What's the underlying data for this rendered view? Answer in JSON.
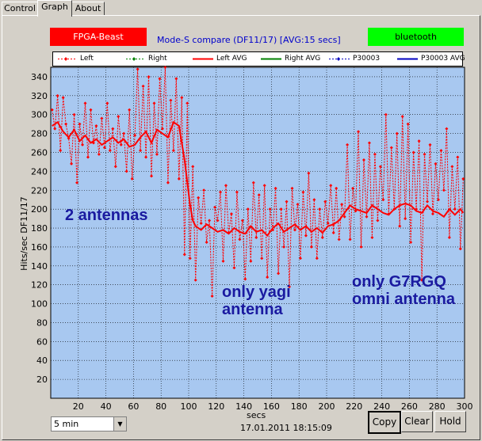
{
  "tabs": [
    "Control",
    "Graph",
    "About"
  ],
  "active_tab": 1,
  "badges": {
    "fpga": {
      "label": "FPGA-Beast",
      "color": "#ff0000"
    },
    "bt": {
      "label": "bluetooth",
      "color": "#00ff00"
    }
  },
  "chart_title": "Mode-S compare (DF11/17) [AVG:15 secs]",
  "legend": [
    {
      "label": "Left",
      "color": "#ff0000",
      "style": "dotted"
    },
    {
      "label": "Right",
      "color": "#008000",
      "style": "dotted"
    },
    {
      "label": "Left AVG",
      "color": "#ff0000",
      "style": "solid"
    },
    {
      "label": "Right AVG",
      "color": "#008000",
      "style": "solid"
    },
    {
      "label": "P30003",
      "color": "#0000c0",
      "style": "dotted"
    },
    {
      "label": "P30003 AVG",
      "color": "#0000c0",
      "style": "solid"
    }
  ],
  "chart_data": {
    "type": "line",
    "title": "Mode-S compare (DF11/17) [AVG:15 secs]",
    "xlabel": "secs",
    "ylabel": "Hits/sec DF11/17",
    "xlim": [
      0,
      300
    ],
    "ylim": [
      0,
      350
    ],
    "xticks": [
      20,
      40,
      60,
      80,
      100,
      120,
      140,
      160,
      180,
      200,
      220,
      240,
      260,
      280,
      300
    ],
    "yticks": [
      0,
      20,
      40,
      60,
      80,
      100,
      120,
      140,
      160,
      180,
      200,
      220,
      240,
      260,
      280,
      300,
      320,
      340
    ],
    "grid": true,
    "background": "#a8c8f0",
    "series": [
      {
        "name": "Left",
        "style": "dotted-markers",
        "color": "#ff0000",
        "x": [
          1,
          3,
          5,
          7,
          9,
          11,
          13,
          15,
          17,
          19,
          21,
          23,
          25,
          27,
          29,
          31,
          33,
          35,
          37,
          39,
          41,
          43,
          45,
          47,
          49,
          51,
          53,
          55,
          57,
          59,
          61,
          63,
          65,
          67,
          69,
          71,
          73,
          75,
          77,
          79,
          81,
          83,
          85,
          87,
          89,
          91,
          93,
          95,
          97,
          99,
          101,
          103,
          105,
          107,
          109,
          111,
          113,
          115,
          117,
          119,
          121,
          123,
          125,
          127,
          129,
          131,
          133,
          135,
          137,
          139,
          141,
          143,
          145,
          147,
          149,
          151,
          153,
          155,
          157,
          159,
          161,
          163,
          165,
          167,
          169,
          171,
          173,
          175,
          177,
          179,
          181,
          183,
          185,
          187,
          189,
          191,
          193,
          195,
          197,
          199,
          201,
          203,
          205,
          207,
          209,
          211,
          213,
          215,
          217,
          219,
          221,
          223,
          225,
          227,
          229,
          231,
          233,
          235,
          237,
          239,
          241,
          243,
          245,
          247,
          249,
          251,
          253,
          255,
          257,
          259,
          261,
          263,
          265,
          267,
          269,
          271,
          273,
          275,
          277,
          279,
          281,
          283,
          285,
          287,
          289,
          291,
          293,
          295,
          297,
          299
        ],
        "y": [
          305,
          285,
          320,
          262,
          318,
          290,
          275,
          248,
          300,
          228,
          290,
          268,
          312,
          255,
          305,
          270,
          288,
          258,
          296,
          265,
          312,
          262,
          285,
          245,
          298,
          268,
          280,
          240,
          305,
          232,
          278,
          348,
          262,
          330,
          255,
          340,
          235,
          312,
          258,
          338,
          285,
          350,
          228,
          315,
          262,
          338,
          232,
          318,
          152,
          312,
          148,
          245,
          125,
          212,
          185,
          220,
          165,
          188,
          108,
          202,
          188,
          218,
          145,
          225,
          175,
          195,
          138,
          218,
          168,
          188,
          126,
          200,
          145,
          228,
          170,
          215,
          148,
          225,
          128,
          200,
          178,
          222,
          132,
          200,
          160,
          208,
          118,
          222,
          178,
          205,
          148,
          218,
          172,
          238,
          160,
          210,
          148,
          200,
          170,
          208,
          185,
          225,
          175,
          222,
          168,
          205,
          192,
          268,
          168,
          222,
          198,
          282,
          160,
          252,
          192,
          270,
          170,
          258,
          188,
          245,
          210,
          300,
          195,
          265,
          200,
          280,
          182,
          298,
          190,
          290,
          165,
          260,
          200,
          272,
          125,
          258,
          208,
          268,
          195,
          248,
          210,
          262,
          220,
          285,
          170,
          245,
          200,
          255,
          158,
          232
        ]
      },
      {
        "name": "Left AVG",
        "style": "solid",
        "color": "#ff0000",
        "x": [
          1,
          5,
          9,
          13,
          17,
          21,
          25,
          29,
          33,
          37,
          41,
          45,
          49,
          53,
          57,
          61,
          65,
          69,
          73,
          77,
          81,
          85,
          89,
          93,
          95,
          97,
          99,
          101,
          103,
          105,
          109,
          113,
          117,
          121,
          125,
          129,
          133,
          137,
          141,
          145,
          149,
          153,
          157,
          161,
          165,
          169,
          173,
          177,
          181,
          185,
          189,
          193,
          197,
          201,
          205,
          209,
          213,
          217,
          221,
          225,
          229,
          233,
          237,
          241,
          245,
          249,
          253,
          257,
          261,
          265,
          269,
          273,
          277,
          281,
          285,
          289,
          293,
          297,
          299
        ],
        "y": [
          288,
          292,
          282,
          276,
          284,
          272,
          278,
          270,
          274,
          268,
          272,
          276,
          270,
          274,
          266,
          268,
          276,
          282,
          270,
          284,
          280,
          276,
          292,
          288,
          270,
          252,
          228,
          205,
          188,
          182,
          178,
          184,
          180,
          176,
          178,
          174,
          180,
          176,
          174,
          182,
          176,
          178,
          172,
          180,
          185,
          176,
          180,
          184,
          178,
          182,
          176,
          180,
          175,
          182,
          184,
          188,
          196,
          204,
          200,
          198,
          196,
          204,
          200,
          196,
          194,
          200,
          204,
          206,
          204,
          198,
          196,
          204,
          198,
          196,
          192,
          200,
          194,
          200,
          196
        ]
      }
    ],
    "annotations": [
      "2 antennas",
      "only yagi antenna",
      "only G7RGQ omni antenna"
    ]
  },
  "timestamp": "17.01.2011 18:15:09",
  "interval": {
    "selected": "5 min"
  },
  "buttons": {
    "copy": "Copy",
    "clear": "Clear",
    "hold": "Hold"
  }
}
